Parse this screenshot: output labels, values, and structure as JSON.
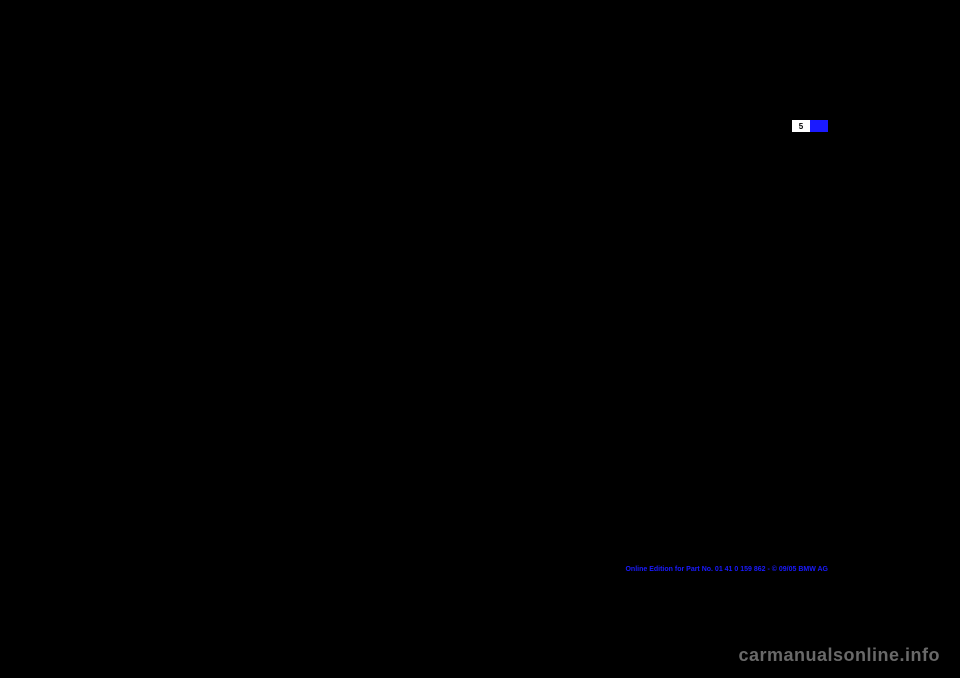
{
  "page_tab": {
    "number": "5",
    "left_bg": "#ffffff",
    "right_bg": "#1a1aff",
    "text_color": "#000000"
  },
  "footer": {
    "text": "Online Edition for Part No. 01 41 0 159 862 - © 09/05 BMW AG"
  },
  "watermark": {
    "text": "carmanualsonline.info"
  },
  "background_color": "#000000"
}
